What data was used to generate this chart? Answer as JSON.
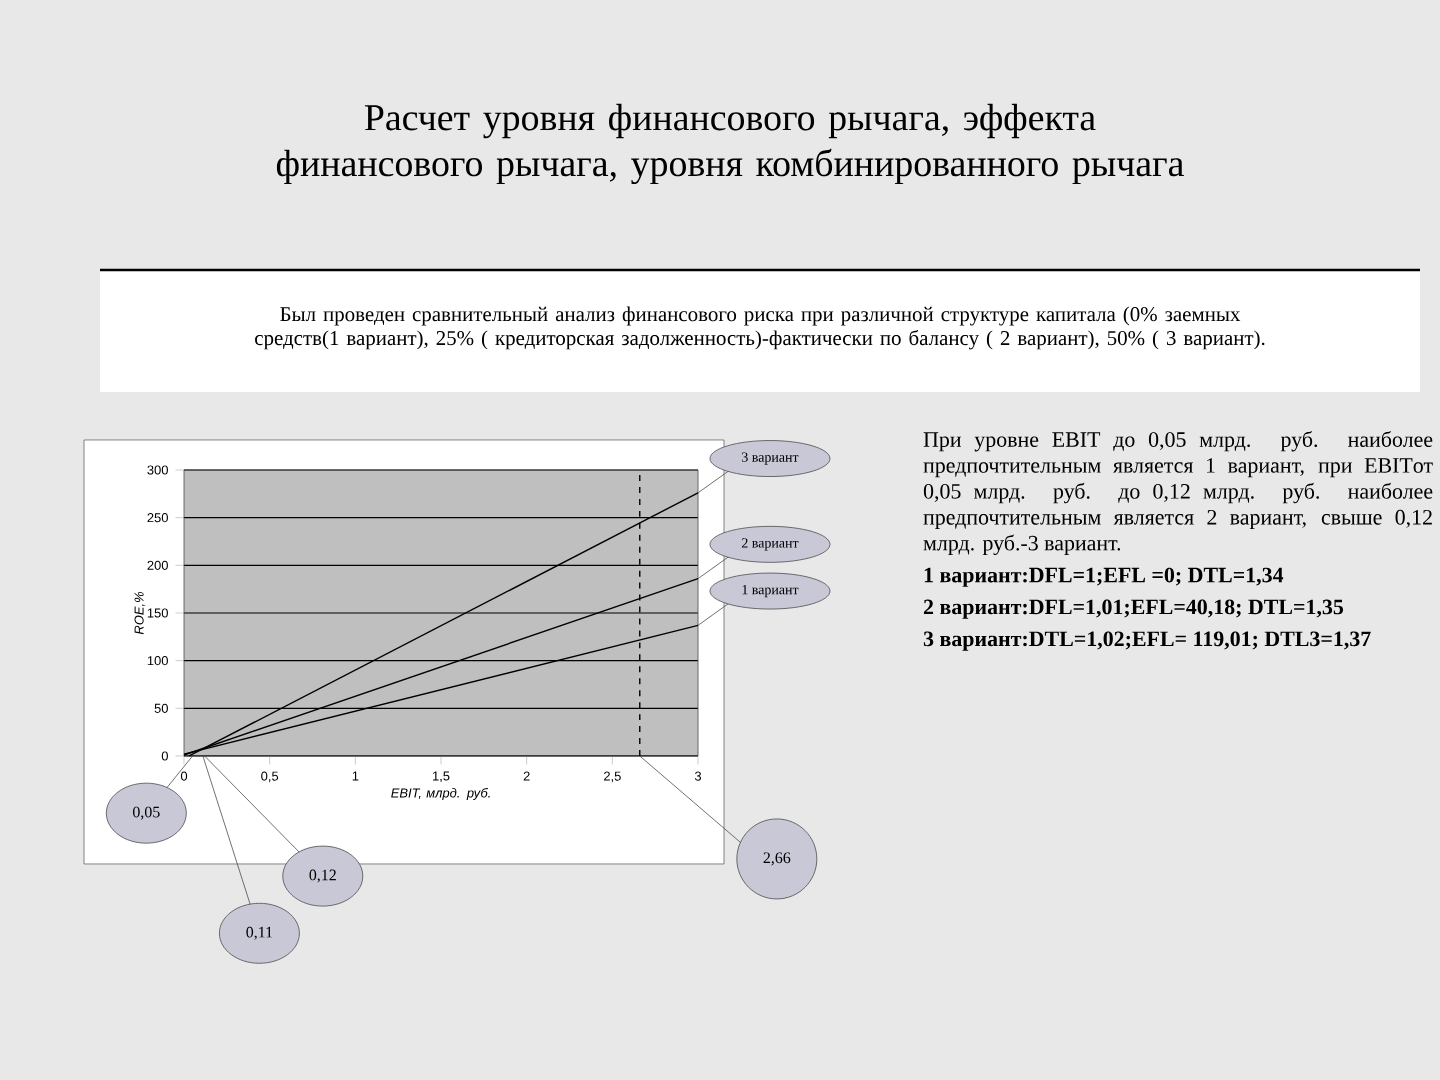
{
  "chart_data": {
    "type": "line",
    "title": "Расчет уровня финансового рычага, эффекта финансового рычага, уровня комбинированного рычага",
    "subtitle": "Был проведен сравнительный анализ финансового риска при различной структуре капитала (0% заемных средств(1 вариант), 25% ( кредиторская задолженность)-фактически по балансу ( 2 вариант), 50% ( 3 вариант).",
    "xlabel": "EBIT, млрд. руб.",
    "ylabel": "ROE,%",
    "series": [
      {
        "name": "1 вариант",
        "color": "#000000",
        "x": [
          0,
          3
        ],
        "values": [
          2,
          137
        ]
      },
      {
        "name": "2 вариант",
        "color": "#000000",
        "x": [
          0,
          3
        ],
        "values": [
          1,
          186
        ]
      },
      {
        "name": "3 вариант",
        "color": "#000000",
        "x": [
          0.03,
          3
        ],
        "values": [
          0,
          276
        ]
      }
    ],
    "xlim": [
      0,
      3
    ],
    "ylim": [
      0,
      300
    ],
    "xticks": [
      0,
      {
        "value": 0.5,
        "label": "0,5"
      },
      1,
      {
        "value": 1.5,
        "label": "1,5"
      },
      2,
      {
        "value": 2.5,
        "label": "2,5"
      },
      3
    ],
    "yticks": [
      0,
      50,
      100,
      150,
      200,
      250,
      300
    ],
    "grid": "y",
    "legend": false,
    "marker": "none",
    "line_style": "solid",
    "ref_lines": [
      {
        "axis": "x",
        "value": 2.66,
        "label": "2,66",
        "line_style": "dashed",
        "color": "#000000"
      }
    ],
    "annotations": [
      {
        "text": "0,05",
        "x": 0.05,
        "y": 0
      },
      {
        "text": "0,11",
        "x": 0.11,
        "y": 0
      },
      {
        "text": "0,12",
        "x": 0.12,
        "y": 0
      },
      "При уровне EBIT до 0,05 млрд. руб. наиболее предпочтительным является 1 вариант, при EBITот 0,05 млрд. руб. до 0,12 млрд. руб. наиболее предпочтительным является 2 вариант, свыше 0,12 млрд. руб.-3 вариант.",
      "1 вариант:DFL=1;EFL =0; DTL=1,34",
      "2 вариант:DFL=1,01;EFL=40,18; DTL=1,35",
      "3 вариант:DTL=1,02;EFL= 119,01; DTL3=1,37"
    ]
  }
}
